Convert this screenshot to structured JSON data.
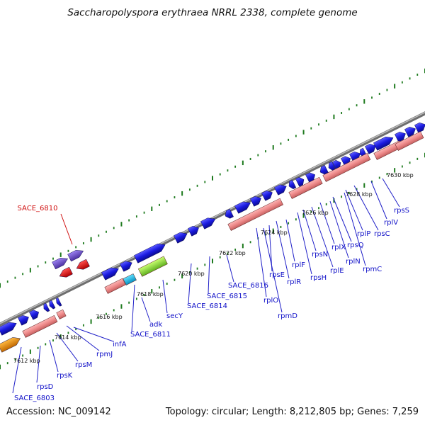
{
  "title": "Saccharopolyspora erythraea NRRL 2338, complete genome",
  "footer": {
    "accession": "Accession: NC_009142",
    "summary": "Topology: circular; Length: 8,212,805 bp; Genes: 7,259"
  },
  "colors": {
    "backbone": "#8a8a8a",
    "tick": "#1e7a1e",
    "forward_cds": "#1a1ae0",
    "reverse_cds": "#f08a8a",
    "rRNA_like": "#6a4cc8",
    "red_feature": "#e01010",
    "cyan_feature": "#20b8e8",
    "green_feature": "#90e040",
    "orange_feature": "#f09010",
    "label_blue": "#1010c8",
    "label_red": "#d01010"
  },
  "scale_labels": [
    "7612 kbp",
    "7614 kbp",
    "7616 kbp",
    "7618 kbp",
    "7620 kbp",
    "7622 kbp",
    "7624 kbp",
    "7626 kbp",
    "7628 kbp",
    "7630 kbp"
  ],
  "gene_labels": [
    "SACE_6803",
    "rpsD",
    "rpsK",
    "rpsM",
    "rpmJ",
    "infA",
    "SACE_6811",
    "adk",
    "secY",
    "SACE_6814",
    "SACE_6815",
    "SACE_6816",
    "rplO",
    "rpmD",
    "rpsE",
    "rplR",
    "rplF",
    "rpsH",
    "rpsN",
    "rplE",
    "rplX",
    "rplN",
    "rpsQ",
    "rpmC",
    "rplP",
    "rpsC",
    "rplV",
    "rpsS"
  ],
  "highlight_label": "SACE_6810"
}
